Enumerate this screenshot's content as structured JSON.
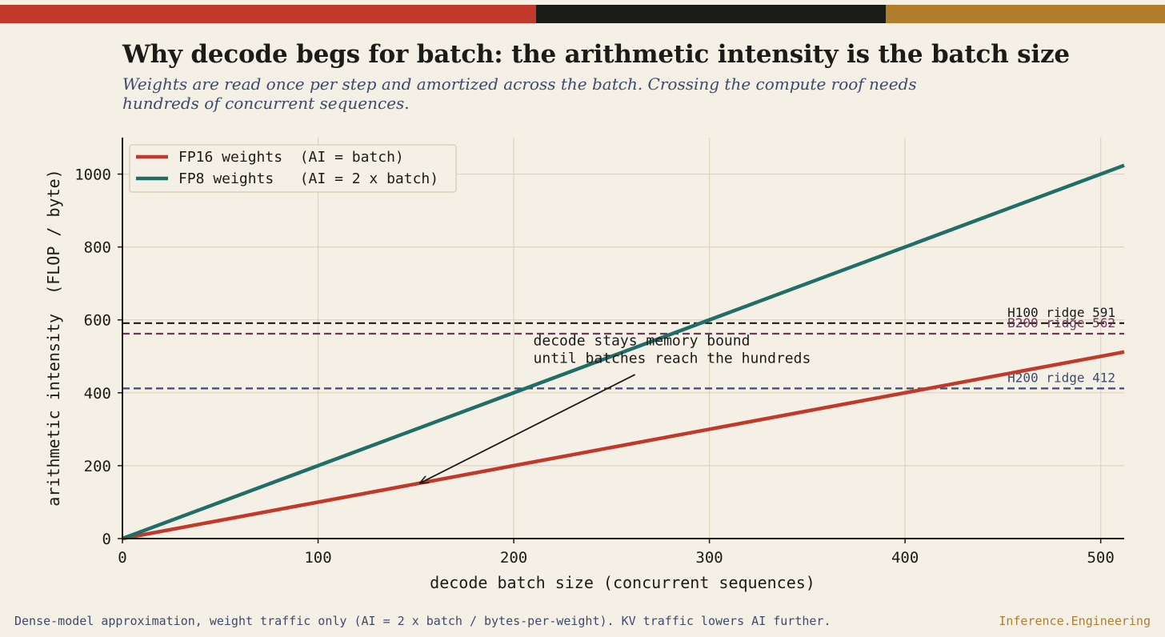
{
  "header": {
    "title": "Why decode begs for batch: the arithmetic intensity is the batch size",
    "subtitle": "Weights are read once per step and amortized across the batch. Crossing the compute roof needs hundreds of concurrent sequences."
  },
  "colors": {
    "background": "#f5f0e6",
    "brand_red": "#c0392b",
    "brand_black": "#1b1b17",
    "brand_gold": "#b07d2b",
    "fp16": "#c0392b",
    "fp8": "#1f6e68",
    "h100": "#1b1b17",
    "b200": "#6b3a5b",
    "h200": "#3d4a6b",
    "grid": "#e0d3bd"
  },
  "chart_data": {
    "type": "line",
    "xlabel": "decode batch size  (concurrent sequences)",
    "ylabel": "arithmetic intensity  (FLOP / byte)",
    "xlim": [
      0,
      512
    ],
    "ylim": [
      0,
      1100
    ],
    "xticks": [
      0,
      100,
      200,
      300,
      400,
      500
    ],
    "yticks": [
      0,
      200,
      400,
      600,
      800,
      1000
    ],
    "grid": true,
    "legend_position": "top-left",
    "series": [
      {
        "name": "FP16 weights  (AI = batch)",
        "color": "#c0392b",
        "x": [
          0,
          512
        ],
        "y": [
          0,
          512
        ]
      },
      {
        "name": "FP8 weights   (AI = 2 x batch)",
        "color": "#1f6e68",
        "x": [
          0,
          512
        ],
        "y": [
          0,
          1024
        ]
      }
    ],
    "reference_lines": [
      {
        "label": "H100 ridge 591",
        "value": 591,
        "color": "#1b1b17"
      },
      {
        "label": "B200 ridge 562",
        "value": 562,
        "color": "#6b3a5b"
      },
      {
        "label": "H200 ridge 412",
        "value": 412,
        "color": "#3d4a6b"
      }
    ],
    "annotation": {
      "lines": [
        "decode stays memory bound",
        "until batches reach the hundreds"
      ],
      "text_at": [
        210,
        530
      ],
      "arrow_from": [
        262,
        450
      ],
      "arrow_to": [
        152,
        152
      ]
    }
  },
  "footer": {
    "note": "Dense-model approximation, weight traffic only (AI = 2 x batch / bytes-per-weight). KV traffic lowers AI further.",
    "brand": "Inference.Engineering"
  }
}
